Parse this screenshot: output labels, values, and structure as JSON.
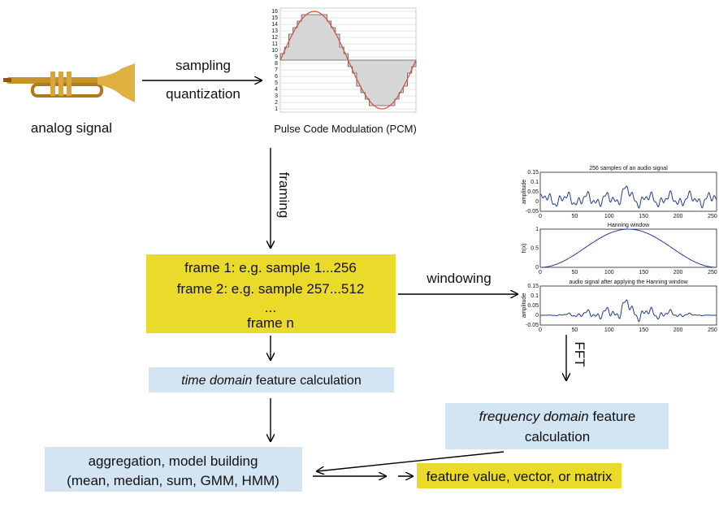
{
  "source": {
    "label": "analog signal"
  },
  "edge_sampling": {
    "line1": "sampling",
    "line2": "quantization"
  },
  "pcm": {
    "caption": "Pulse Code Modulation (PCM)",
    "yticks": [
      "1",
      "2",
      "3",
      "4",
      "5",
      "6",
      "7",
      "8",
      "9",
      "10",
      "11",
      "12",
      "13",
      "14",
      "15",
      "16"
    ]
  },
  "edge_framing": {
    "label": "framing"
  },
  "frames": {
    "lines": [
      "frame 1: e.g. sample 1...256",
      "frame 2: e.g. sample 257...512",
      "...",
      "frame n"
    ]
  },
  "edge_windowing": {
    "label": "windowing"
  },
  "plots": [
    {
      "title": "256 samples of an audio signal",
      "ylabel": "amplitude",
      "yticks": [
        "0.15",
        "0.1",
        "0.05",
        "0",
        "-0.05"
      ],
      "xticks": [
        "0",
        "50",
        "100",
        "150",
        "200",
        "250"
      ]
    },
    {
      "title": "Hanning window",
      "ylabel": "h(x)",
      "yticks": [
        "1",
        "0.5",
        "0"
      ],
      "xticks": [
        "0",
        "50",
        "100",
        "150",
        "200",
        "250"
      ]
    },
    {
      "title": "audio signal after applying the Hanning window",
      "ylabel": "amplitude",
      "yticks": [
        "0.15",
        "0.1",
        "0.05",
        "0",
        "-0.05"
      ],
      "xticks": [
        "0",
        "50",
        "100",
        "150",
        "200",
        "250"
      ]
    }
  ],
  "edge_fft": {
    "label": "FFT"
  },
  "time_box": {
    "italic": "time domain",
    "rest": " feature calculation"
  },
  "freq_box": {
    "italic": "frequency domain",
    "rest": " feature",
    "line2": "calculation"
  },
  "aggregation": {
    "line1": "aggregation, model building",
    "line2": "(mean, median, sum, GMM, HMM)"
  },
  "output": {
    "label": "feature value, vector, or matrix"
  }
}
